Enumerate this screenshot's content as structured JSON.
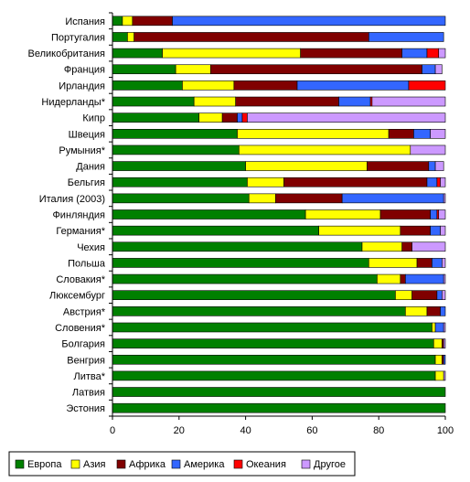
{
  "chart_data": {
    "type": "bar",
    "orientation": "horizontal",
    "stacked": true,
    "categories": [
      "Испания",
      "Португалия",
      "Великобритания",
      "Франция",
      "Ирландия",
      "Нидерланды*",
      "Кипр",
      "Швеция",
      "Румыния*",
      "Дания",
      "Бельгия",
      "Италия (2003)",
      "Финляндия",
      "Германия*",
      "Чехия",
      "Польша",
      "Словакия*",
      "Люксембург",
      "Австрия*",
      "Словения*",
      "Болгария",
      "Венгрия",
      "Литва*",
      "Латвия",
      "Эстония"
    ],
    "series": [
      {
        "name": "Европа",
        "color": "#008000",
        "values": [
          3,
          4.5,
          15,
          19,
          21,
          24.5,
          26,
          37.5,
          38,
          40,
          40.5,
          41,
          58,
          62,
          75,
          77,
          79.5,
          85,
          88,
          96,
          96.5,
          97,
          97,
          100,
          100
        ]
      },
      {
        "name": "Азия",
        "color": "#ffff00",
        "values": [
          3,
          2,
          41.5,
          10.5,
          15.5,
          12.5,
          7,
          45.5,
          51.5,
          36.5,
          11,
          8,
          22.5,
          24.5,
          12,
          14.5,
          7,
          5,
          6.5,
          1,
          2.5,
          2,
          2.5,
          0,
          0
        ]
      },
      {
        "name": "Африка",
        "color": "#800000",
        "values": [
          12,
          70.5,
          30.5,
          63.5,
          19,
          31,
          4.5,
          7.5,
          0,
          18.5,
          43,
          20,
          15,
          9,
          3,
          4.5,
          1.5,
          7.5,
          4,
          0,
          0.5,
          0.5,
          0,
          0,
          0
        ]
      },
      {
        "name": "Америка",
        "color": "#3366ff",
        "values": [
          82,
          22.5,
          7.5,
          4,
          33.5,
          9.5,
          1.5,
          5,
          0,
          2,
          3,
          30.5,
          2,
          3,
          0,
          3,
          11.5,
          1.5,
          1.5,
          2.5,
          0,
          0.5,
          0,
          0,
          0
        ]
      },
      {
        "name": "Океания",
        "color": "#ff0000",
        "values": [
          0,
          0,
          3.5,
          0,
          11,
          0.5,
          1.5,
          0,
          0,
          0,
          1,
          0,
          0.5,
          0,
          0,
          0,
          0,
          0,
          0,
          0,
          0,
          0,
          0,
          0,
          0
        ]
      },
      {
        "name": "Другое",
        "color": "#cc99ff",
        "values": [
          0,
          0,
          2,
          2,
          0,
          22,
          59.5,
          4.5,
          10.5,
          2.5,
          1.5,
          0.5,
          2,
          1.5,
          10,
          1,
          0.5,
          1,
          0,
          0.5,
          0.5,
          0,
          0.5,
          0,
          0
        ]
      }
    ],
    "x_ticks": [
      0,
      20,
      40,
      60,
      80,
      100
    ],
    "xlim": [
      0,
      100
    ],
    "xlabel": "",
    "ylabel": "",
    "title": "",
    "grid": false,
    "legend_position": "bottom"
  }
}
